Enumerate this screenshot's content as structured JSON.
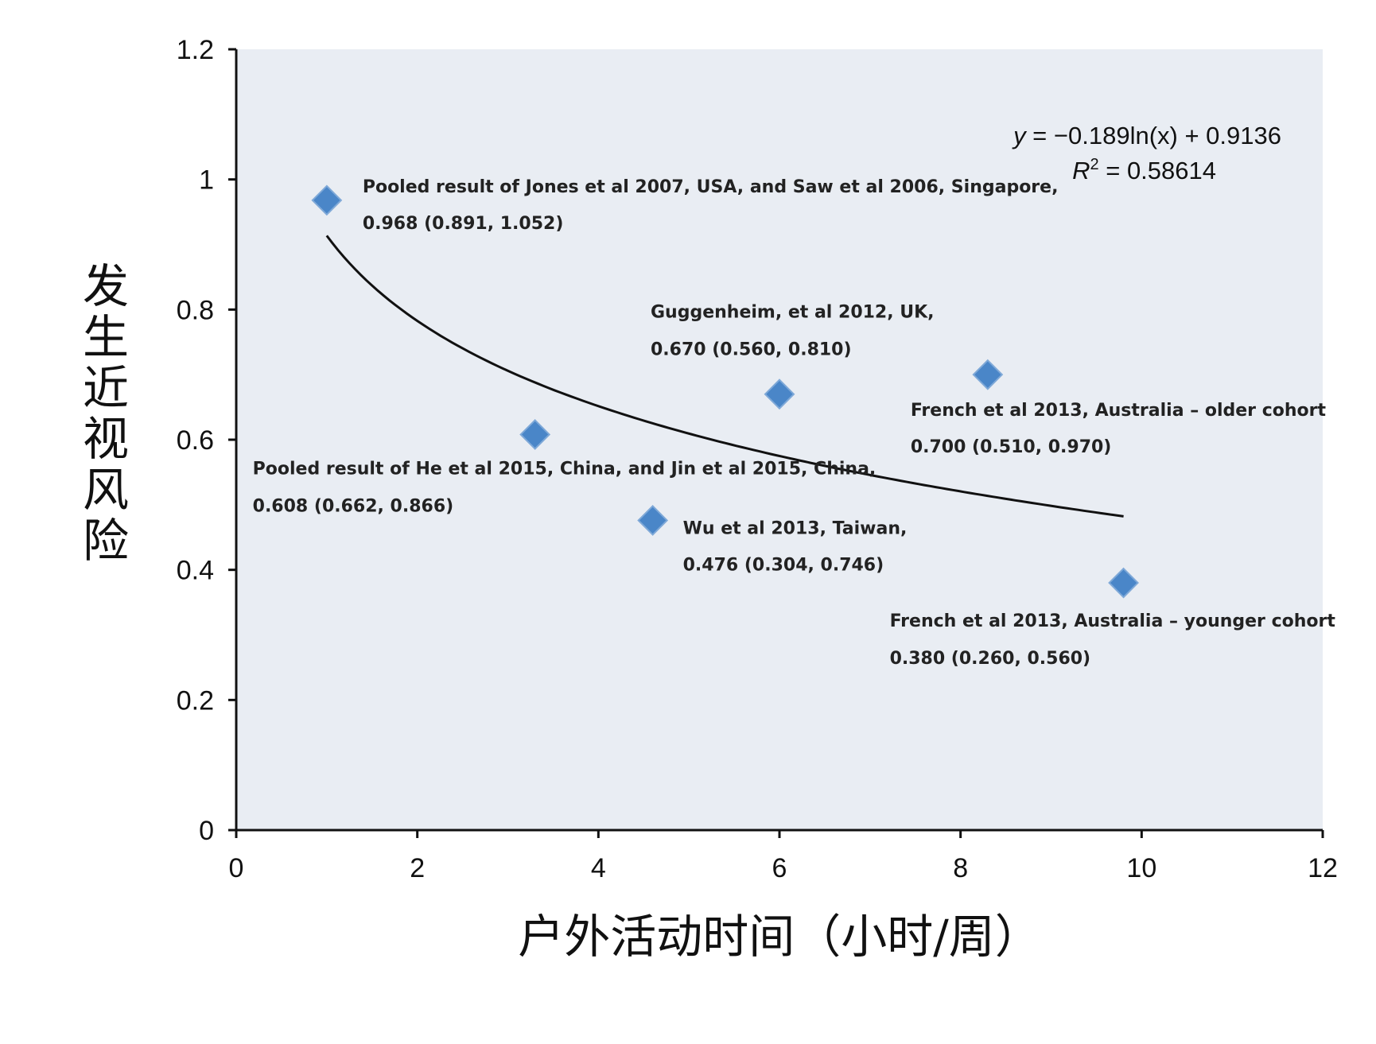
{
  "chart_data": {
    "type": "scatter",
    "xlabel": "户外活动时间（小时/周）",
    "ylabel": "发生近视风险",
    "xlim": [
      0,
      12
    ],
    "ylim": [
      0,
      1.2
    ],
    "x_ticks": [
      "0",
      "2",
      "4",
      "6",
      "8",
      "10",
      "12"
    ],
    "y_ticks": [
      "0",
      "0.2",
      "0.4",
      "0.6",
      "0.8",
      "1",
      "1.2"
    ],
    "grid": false,
    "colors": {
      "background": "#e9edf3",
      "marker": "#4a86c8",
      "trend": "#111111"
    },
    "series": [
      {
        "marker": "diamond",
        "points": [
          {
            "x": 1.0,
            "y": 0.968,
            "label": [
              "Pooled result of Jones et al 2007, USA, and Saw et al 2006, Singapore,",
              "0.968 (0.891, 1.052)"
            ]
          },
          {
            "x": 3.3,
            "y": 0.608,
            "label": [
              "Pooled result of He et al 2015, China, and Jin et al 2015, China,",
              "0.608 (0.662, 0.866)"
            ]
          },
          {
            "x": 4.6,
            "y": 0.476,
            "label": [
              "Wu et al 2013, Taiwan,",
              "0.476 (0.304, 0.746)"
            ]
          },
          {
            "x": 6.0,
            "y": 0.67,
            "label": [
              "Guggenheim,  et al 2012, UK,",
              "0.670 (0.560, 0.810)"
            ]
          },
          {
            "x": 8.3,
            "y": 0.7,
            "label": [
              "French et al 2013, Australia – older cohort",
              "0.700 (0.510, 0.970)"
            ]
          },
          {
            "x": 9.8,
            "y": 0.38,
            "label": [
              "French  et al 2013, Australia – younger cohort",
              "0.380 (0.260, 0.560)"
            ]
          }
        ]
      }
    ],
    "trendline": {
      "type": "logarithmic",
      "a": -0.189,
      "b": 0.9136,
      "x_range": [
        1.0,
        9.8
      ]
    },
    "equation": {
      "line1": "y = −0.189ln(x) + 0.9136",
      "r2_prefix": "R",
      "r2_sup": "2",
      "r2_rest": " = 0.58614"
    }
  }
}
